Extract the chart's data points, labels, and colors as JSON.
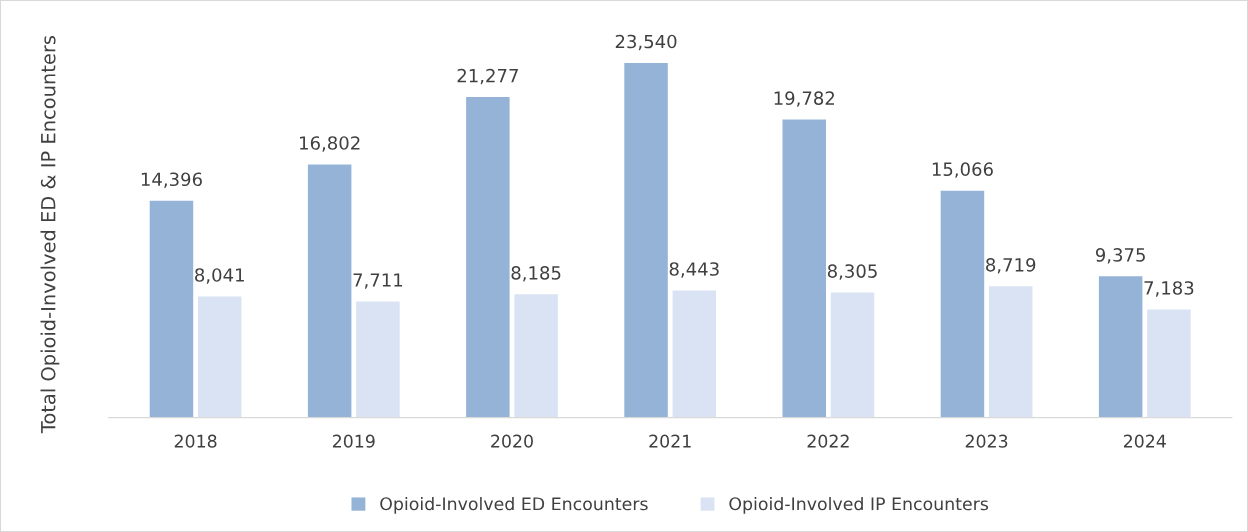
{
  "chart_data": {
    "type": "bar",
    "ylabel": "Total Opioid-Involved ED & IP Encounters",
    "categories": [
      "2018",
      "2019",
      "2020",
      "2021",
      "2022",
      "2023",
      "2024"
    ],
    "series": [
      {
        "name": "Opioid-Involved ED Encounters",
        "color": "#95b3d7",
        "values": [
          14396,
          16802,
          21277,
          23540,
          19782,
          15066,
          9375
        ],
        "value_labels": [
          "14,396",
          "16,802",
          "21,277",
          "23,540",
          "19,782",
          "15,066",
          "9,375"
        ]
      },
      {
        "name": "Opioid-Involved IP Encounters",
        "color": "#dae3f3",
        "values": [
          8041,
          7711,
          8185,
          8443,
          8305,
          8719,
          7183
        ],
        "value_labels": [
          "8,041",
          "7,711",
          "8,185",
          "8,443",
          "8,305",
          "8,719",
          "7,183"
        ]
      }
    ],
    "tick_labels": "x",
    "grid": false,
    "legend": "bottom"
  }
}
